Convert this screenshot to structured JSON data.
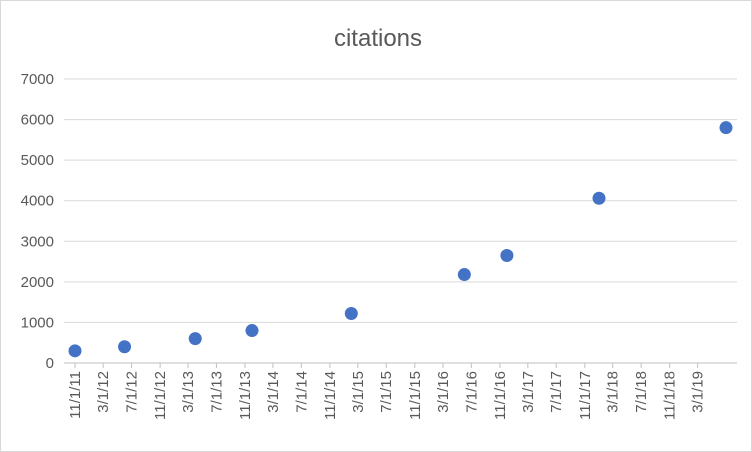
{
  "chart_data": {
    "type": "scatter",
    "title": "citations",
    "xlabel": "",
    "ylabel": "",
    "ylim": [
      0,
      7000
    ],
    "y_ticks": [
      0,
      1000,
      2000,
      3000,
      4000,
      5000,
      6000,
      7000
    ],
    "x_ticks": [
      "11/1/11",
      "3/1/12",
      "7/1/12",
      "11/1/12",
      "3/1/13",
      "7/1/13",
      "11/1/13",
      "3/1/14",
      "7/1/14",
      "11/1/14",
      "3/1/15",
      "7/1/15",
      "11/1/15",
      "3/1/16",
      "7/1/16",
      "11/1/16",
      "3/1/17",
      "7/1/17",
      "11/1/17",
      "3/1/18",
      "7/1/18",
      "11/1/18",
      "3/1/19"
    ],
    "xlim": [
      "11/1/11",
      "7/1/19"
    ],
    "grid": true,
    "legend": "none",
    "marker_color": "#4472c4",
    "points": [
      {
        "x": "11/1/11",
        "y": 300
      },
      {
        "x": "6/1/12",
        "y": 400
      },
      {
        "x": "4/1/13",
        "y": 600
      },
      {
        "x": "12/1/13",
        "y": 800
      },
      {
        "x": "2/1/15",
        "y": 1220
      },
      {
        "x": "6/1/16",
        "y": 2180
      },
      {
        "x": "12/1/16",
        "y": 2650
      },
      {
        "x": "1/1/18",
        "y": 4060
      },
      {
        "x": "7/1/19",
        "y": 5800
      }
    ]
  }
}
